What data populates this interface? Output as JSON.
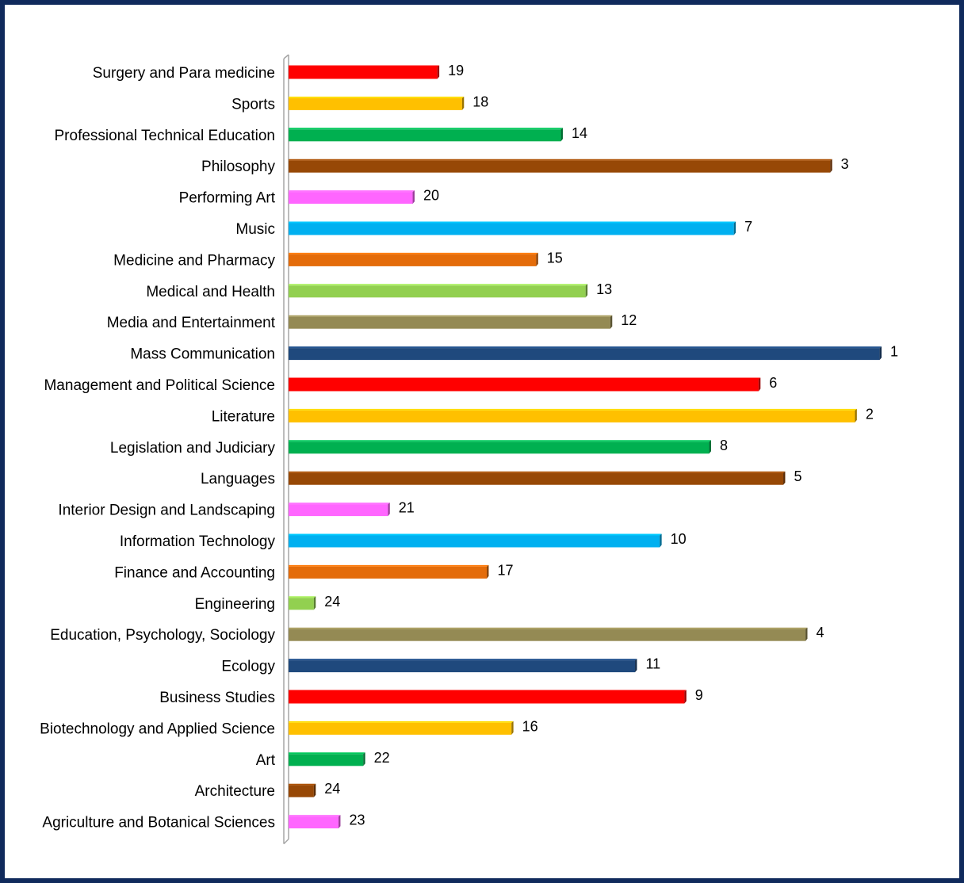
{
  "chart_data": {
    "type": "bar",
    "orientation": "horizontal",
    "title": "",
    "xlabel": "",
    "ylabel": "",
    "categories": [
      "Surgery and Para medicine",
      "Sports",
      "Professional Technical Education",
      "Philosophy",
      "Performing Art",
      "Music",
      "Medicine and Pharmacy",
      "Medical and Health",
      "Media and Entertainment",
      "Mass Communication",
      "Management and Political Science",
      "Literature",
      "Legislation and Judiciary",
      "Languages",
      "Interior Design and Landscaping",
      "Information Technology",
      "Finance and Accounting",
      "Engineering",
      "Education, Psychology, Sociology",
      "Ecology",
      "Business Studies",
      "Biotechnology and Applied Science",
      "Art",
      "Architecture",
      "Agriculture and Botanical Sciences"
    ],
    "values": [
      61,
      71,
      111,
      220,
      51,
      181,
      101,
      121,
      131,
      240,
      191,
      230,
      171,
      201,
      41,
      151,
      81,
      11,
      210,
      141,
      161,
      91,
      31,
      11,
      21
    ],
    "data_labels": [
      "19",
      "18",
      "14",
      "3",
      "20",
      "7",
      "15",
      "13",
      "12",
      "1",
      "6",
      "2",
      "8",
      "5",
      "21",
      "10",
      "17",
      "24",
      "4",
      "11",
      "9",
      "16",
      "22",
      "24",
      "23"
    ],
    "xlim": [
      0,
      240
    ],
    "grid": false,
    "legend": "none",
    "bar_style": "3d",
    "colors": [
      "#ff0000",
      "#ffc000",
      "#00b050",
      "#974806",
      "#ff66ff",
      "#00b0f0",
      "#e46c0a",
      "#92d050",
      "#948a54",
      "#1f497d"
    ]
  }
}
